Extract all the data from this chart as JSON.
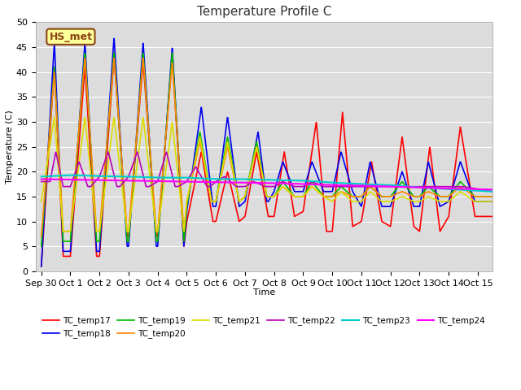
{
  "title": "Temperature Profile C",
  "xlabel": "Time",
  "ylabel": "Temperature (C)",
  "ylim": [
    0,
    50
  ],
  "xlim": [
    -0.2,
    15.5
  ],
  "background_color": "#dcdcdc",
  "annotation_text": "HS_met",
  "annotation_bg": "#ffff99",
  "annotation_border": "#8B4513",
  "series_colors": {
    "TC_temp17": "#ff0000",
    "TC_temp18": "#0000ee",
    "TC_temp19": "#00bb00",
    "TC_temp20": "#ff8800",
    "TC_temp21": "#dddd00",
    "TC_temp22": "#bb00bb",
    "TC_temp23": "#00cccc",
    "TC_temp24": "#ff00ff"
  },
  "series_lw": {
    "TC_temp17": 1.2,
    "TC_temp18": 1.2,
    "TC_temp19": 1.2,
    "TC_temp20": 1.2,
    "TC_temp21": 1.2,
    "TC_temp22": 1.2,
    "TC_temp23": 1.5,
    "TC_temp24": 1.5
  },
  "x_tick_labels": [
    "Sep 30",
    "Oct 1",
    "Oct 2",
    "Oct 3",
    "Oct 4",
    "Oct 5",
    "Oct 6",
    "Oct 7",
    "Oct 8",
    "Oct 9",
    "Oct 10",
    "Oct 11",
    "Oct 12",
    "Oct 13",
    "Oct 14",
    "Oct 15"
  ],
  "x_tick_positions": [
    0,
    1,
    2,
    3,
    4,
    5,
    6,
    7,
    8,
    9,
    10,
    11,
    12,
    13,
    14,
    15
  ],
  "y_ticks": [
    0,
    5,
    10,
    15,
    20,
    25,
    30,
    35,
    40,
    45,
    50
  ]
}
